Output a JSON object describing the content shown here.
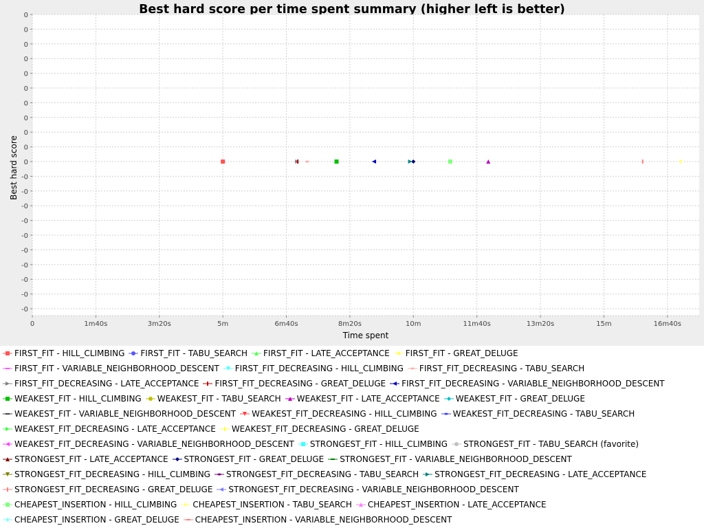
{
  "chart_data": {
    "type": "scatter",
    "title": "Best hard score per time spent summary (higher left is better)",
    "xlabel": "Time spent",
    "ylabel": "Best hard score",
    "xlim_seconds": [
      0,
      1050
    ],
    "x_ticks": [
      {
        "value": 0,
        "label": "0"
      },
      {
        "value": 100,
        "label": "1m40s"
      },
      {
        "value": 200,
        "label": "3m20s"
      },
      {
        "value": 300,
        "label": "5m"
      },
      {
        "value": 400,
        "label": "6m40s"
      },
      {
        "value": 500,
        "label": "8m20s"
      },
      {
        "value": 600,
        "label": "10m"
      },
      {
        "value": 700,
        "label": "11m40s"
      },
      {
        "value": 800,
        "label": "13m20s"
      },
      {
        "value": 900,
        "label": "15m"
      },
      {
        "value": 1000,
        "label": "16m40s"
      }
    ],
    "y_tick_labels": [
      "0",
      "0",
      "0",
      "0",
      "0",
      "0",
      "0",
      "0",
      "0",
      "0",
      "0",
      "-0",
      "-0",
      "-0",
      "-0",
      "-0",
      "-0",
      "-0",
      "-0",
      "-0",
      "-0"
    ],
    "grid": true,
    "legend_position": "bottom",
    "series": [
      {
        "name": "FIRST_FIT - HILL_CLIMBING",
        "color": "#ff5555",
        "shape": "square",
        "x": 300,
        "y": 0
      },
      {
        "name": "FIRST_FIT - TABU_SEARCH",
        "color": "#5555ff",
        "shape": "circle"
      },
      {
        "name": "FIRST_FIT - LATE_ACCEPTANCE",
        "color": "#55ff55",
        "shape": "triangle-up"
      },
      {
        "name": "FIRST_FIT - GREAT_DELUGE",
        "color": "#ffff55",
        "shape": "diamond"
      },
      {
        "name": "FIRST_FIT - VARIABLE_NEIGHBORHOOD_DESCENT",
        "color": "#ff55ff",
        "shape": "hrect"
      },
      {
        "name": "FIRST_FIT_DECREASING - HILL_CLIMBING",
        "color": "#55ffff",
        "shape": "triangle-down"
      },
      {
        "name": "FIRST_FIT_DECREASING - TABU_SEARCH",
        "color": "#ffafaf",
        "shape": "ellipse",
        "x": 433,
        "y": 0
      },
      {
        "name": "FIRST_FIT_DECREASING - LATE_ACCEPTANCE",
        "color": "#808080",
        "shape": "triangle-right",
        "x": 417,
        "y": 0
      },
      {
        "name": "FIRST_FIT_DECREASING - GREAT_DELUGE",
        "color": "#c00000",
        "shape": "vrect",
        "x": 418,
        "y": 0
      },
      {
        "name": "FIRST_FIT_DECREASING - VARIABLE_NEIGHBORHOOD_DESCENT",
        "color": "#0000c0",
        "shape": "triangle-left",
        "x": 538,
        "y": 0
      },
      {
        "name": "WEAKEST_FIT - HILL_CLIMBING",
        "color": "#00c000",
        "shape": "square",
        "x": 479,
        "y": 0
      },
      {
        "name": "WEAKEST_FIT - TABU_SEARCH",
        "color": "#c0c000",
        "shape": "circle"
      },
      {
        "name": "WEAKEST_FIT - LATE_ACCEPTANCE",
        "color": "#c000c0",
        "shape": "triangle-up",
        "x": 718,
        "y": 0
      },
      {
        "name": "WEAKEST_FIT - GREAT_DELUGE",
        "color": "#00c0c0",
        "shape": "diamond"
      },
      {
        "name": "WEAKEST_FIT - VARIABLE_NEIGHBORHOOD_DESCENT",
        "color": "#404040",
        "shape": "hrect"
      },
      {
        "name": "WEAKEST_FIT_DECREASING - HILL_CLIMBING",
        "color": "#ff4040",
        "shape": "triangle-down"
      },
      {
        "name": "WEAKEST_FIT_DECREASING - TABU_SEARCH",
        "color": "#4040ff",
        "shape": "ellipse"
      },
      {
        "name": "WEAKEST_FIT_DECREASING - LATE_ACCEPTANCE",
        "color": "#40ff40",
        "shape": "triangle-right"
      },
      {
        "name": "WEAKEST_FIT_DECREASING - GREAT_DELUGE",
        "color": "#ffff40",
        "shape": "vrect"
      },
      {
        "name": "WEAKEST_FIT_DECREASING - VARIABLE_NEIGHBORHOOD_DESCENT",
        "color": "#ff40ff",
        "shape": "triangle-left"
      },
      {
        "name": "STRONGEST_FIT - HILL_CLIMBING",
        "color": "#40ffff",
        "shape": "square"
      },
      {
        "name": "STRONGEST_FIT - TABU_SEARCH (favorite)",
        "color": "#c0c0c0",
        "shape": "circle"
      },
      {
        "name": "STRONGEST_FIT - LATE_ACCEPTANCE",
        "color": "#800000",
        "shape": "triangle-up"
      },
      {
        "name": "STRONGEST_FIT - GREAT_DELUGE",
        "color": "#000080",
        "shape": "diamond",
        "x": 600,
        "y": 0
      },
      {
        "name": "STRONGEST_FIT - VARIABLE_NEIGHBORHOOD_DESCENT",
        "color": "#008000",
        "shape": "hrect"
      },
      {
        "name": "STRONGEST_FIT_DECREASING - HILL_CLIMBING",
        "color": "#808000",
        "shape": "triangle-down"
      },
      {
        "name": "STRONGEST_FIT_DECREASING - TABU_SEARCH",
        "color": "#800080",
        "shape": "ellipse"
      },
      {
        "name": "STRONGEST_FIT_DECREASING - LATE_ACCEPTANCE",
        "color": "#008080",
        "shape": "triangle-right",
        "x": 595,
        "y": 0
      },
      {
        "name": "STRONGEST_FIT_DECREASING - GREAT_DELUGE",
        "color": "#ff8080",
        "shape": "vrect",
        "x": 961,
        "y": 0
      },
      {
        "name": "STRONGEST_FIT_DECREASING - VARIABLE_NEIGHBORHOOD_DESCENT",
        "color": "#8080ff",
        "shape": "triangle-left"
      },
      {
        "name": "CHEAPEST_INSERTION - HILL_CLIMBING",
        "color": "#80ff80",
        "shape": "square",
        "x": 658,
        "y": 0
      },
      {
        "name": "CHEAPEST_INSERTION - TABU_SEARCH",
        "color": "#ffff80",
        "shape": "diamond",
        "x": 1021,
        "y": 0
      },
      {
        "name": "CHEAPEST_INSERTION - LATE_ACCEPTANCE",
        "color": "#ff80ff",
        "shape": "triangle-up"
      },
      {
        "name": "CHEAPEST_INSERTION - GREAT_DELUGE",
        "color": "#80ffff",
        "shape": "diamond"
      },
      {
        "name": "CHEAPEST_INSERTION - VARIABLE_NEIGHBORHOOD_DESCENT",
        "color": "#ff8080",
        "shape": "hrect"
      }
    ]
  }
}
